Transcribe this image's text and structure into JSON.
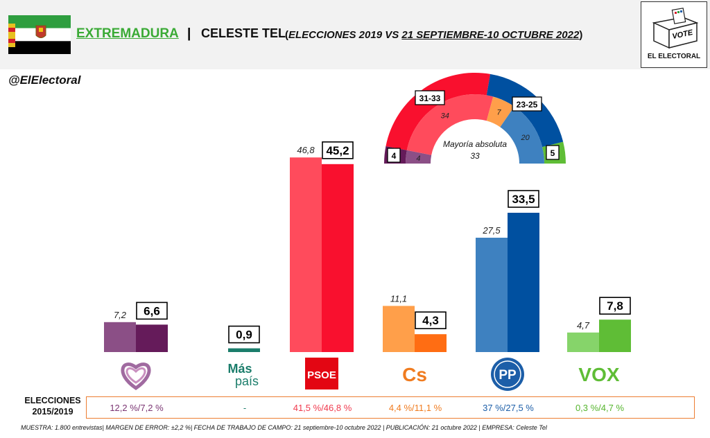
{
  "header": {
    "region": "EXTREMADURA",
    "separator": "|",
    "pollster": "CELESTE TEL",
    "sub_open": "(",
    "sub_italic": "ELECCIONES 2019 VS ",
    "sub_dates": "21 SEPTIEMBRE-10 OCTUBRE 2022",
    "sub_close": ")"
  },
  "logo": {
    "box_text": "VOTE",
    "name": "EL ELECTORAL"
  },
  "handle": "@ElElectoral",
  "chart_data": {
    "type": "bar",
    "categories": [
      "Unidas Podemos",
      "Más País",
      "PSOE",
      "Cs",
      "PP",
      "VOX"
    ],
    "party_logo_texts": [
      "",
      "Más país",
      "PSOE",
      "Cs",
      "PP",
      "VOX"
    ],
    "series": [
      {
        "name": "Elecciones 2019",
        "values": [
          7.2,
          null,
          46.8,
          11.1,
          27.5,
          4.7
        ],
        "colors": [
          "#8b4f86",
          null,
          "#ff4b5c",
          "#ff9f4a",
          "#3e81c0",
          "#86d46a"
        ]
      },
      {
        "name": "Celeste Tel 2022",
        "values": [
          6.6,
          0.9,
          45.2,
          4.3,
          33.5,
          7.8
        ],
        "colors": [
          "#651b5a",
          "#1b7d6b",
          "#f9102e",
          "#ff6d13",
          "#0050a0",
          "#5fbd36"
        ]
      }
    ],
    "ylim": [
      0,
      50
    ],
    "previous_label": "ELECCIONES 2015/2019",
    "previous_results": [
      "12,2 %/7,2 %",
      "-",
      "41,5 %/46,8 %",
      "4,4 %/11,1 %",
      "37 %/27,5 %",
      "0,3 %/4,7 %"
    ],
    "previous_colors": [
      "#7a3472",
      "#1b7d6b",
      "#f03a4e",
      "#f07c20",
      "#1c5ea8",
      "#56b52e"
    ],
    "seats": {
      "type": "pie",
      "title": "Mayoría absoluta",
      "majority": "33",
      "inner": [
        {
          "party": "Unidas Podemos",
          "value": 4,
          "color": "#8b4f86"
        },
        {
          "party": "PSOE",
          "value": 34,
          "color": "#ff4b5c"
        },
        {
          "party": "Cs",
          "value": 7,
          "color": "#ff9f4a"
        },
        {
          "party": "PP",
          "value": 20,
          "color": "#3e81c0"
        },
        {
          "party": "VOX",
          "value": 0,
          "color": "#86d46a"
        }
      ],
      "outer": [
        {
          "party": "Unidas Podemos",
          "value": 4,
          "label": "4",
          "color": "#651b5a"
        },
        {
          "party": "PSOE",
          "value": 32,
          "label": "31-33",
          "color": "#f9102e"
        },
        {
          "party": "PP",
          "value": 24,
          "label": "23-25",
          "color": "#0050a0"
        },
        {
          "party": "VOX",
          "value": 5,
          "label": "5",
          "color": "#5fbd36"
        }
      ]
    }
  },
  "footnote": "MUESTRA: 1.800 entrevistas| MARGEN DE ERROR: ±2,2 %| FECHA DE TRABAJO DE CAMPO: 21 septiembre-10 octubre 2022 | PUBLICACIÓN: 21 octubre 2022 | EMPRESA: Celeste Tel"
}
